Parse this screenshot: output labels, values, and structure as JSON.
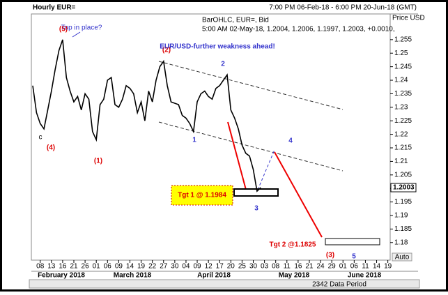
{
  "chart_data": {
    "type": "line",
    "title": "Hourly EUR=",
    "period": "7:00 PM 06-Feb-18 - 6:00 PM 20-Jun-18 (GMT)",
    "legend_text": "BarOHLC, EUR=, Bid",
    "legend_values": "5:00 AM 02-May-18, 1.2004, 1.2006, 1.1997, 1.2003, +0.0010,",
    "y_label": "Price USD",
    "last_price": 1.2003,
    "auto_button": "Auto",
    "data_period": "2342 Data Period",
    "x": [
      "2018-02-06",
      "2018-02-07",
      "2018-02-08",
      "2018-02-09",
      "2018-02-12",
      "2018-02-13",
      "2018-02-14",
      "2018-02-15",
      "2018-02-16",
      "2018-02-19",
      "2018-02-20",
      "2018-02-21",
      "2018-02-22",
      "2018-02-23",
      "2018-02-26",
      "2018-02-27",
      "2018-02-28",
      "2018-03-01",
      "2018-03-02",
      "2018-03-05",
      "2018-03-06",
      "2018-03-07",
      "2018-03-08",
      "2018-03-09",
      "2018-03-12",
      "2018-03-13",
      "2018-03-14",
      "2018-03-15",
      "2018-03-16",
      "2018-03-19",
      "2018-03-20",
      "2018-03-21",
      "2018-03-22",
      "2018-03-23",
      "2018-03-26",
      "2018-03-27",
      "2018-03-28",
      "2018-03-29",
      "2018-04-02",
      "2018-04-03",
      "2018-04-04",
      "2018-04-05",
      "2018-04-06",
      "2018-04-09",
      "2018-04-10",
      "2018-04-11",
      "2018-04-12",
      "2018-04-13",
      "2018-04-16",
      "2018-04-17",
      "2018-04-18",
      "2018-04-19",
      "2018-04-20",
      "2018-04-23",
      "2018-04-24",
      "2018-04-25",
      "2018-04-26",
      "2018-04-27",
      "2018-04-30",
      "2018-05-01",
      "2018-05-02"
    ],
    "series": [
      {
        "name": "EUR=",
        "color": "#000000",
        "values": [
          1.238,
          1.228,
          1.224,
          1.222,
          1.229,
          1.236,
          1.244,
          1.251,
          1.255,
          1.241,
          1.236,
          1.232,
          1.234,
          1.229,
          1.235,
          1.233,
          1.221,
          1.218,
          1.231,
          1.233,
          1.24,
          1.241,
          1.231,
          1.23,
          1.233,
          1.238,
          1.237,
          1.235,
          1.228,
          1.232,
          1.225,
          1.236,
          1.232,
          1.24,
          1.245,
          1.247,
          1.238,
          1.232,
          1.231,
          1.227,
          1.226,
          1.224,
          1.221,
          1.232,
          1.235,
          1.236,
          1.234,
          1.233,
          1.237,
          1.238,
          1.24,
          1.242,
          1.229,
          1.226,
          1.222,
          1.216,
          1.213,
          1.212,
          1.207,
          1.199,
          1.2003
        ]
      }
    ],
    "xlim": [
      "2018-02-06",
      "2018-06-20"
    ],
    "xticks": [
      {
        "value": "2018-02-08",
        "label": "08"
      },
      {
        "value": "2018-02-13",
        "label": "13"
      },
      {
        "value": "2018-02-16",
        "label": "16"
      },
      {
        "value": "2018-02-21",
        "label": "21"
      },
      {
        "value": "2018-02-26",
        "label": "26"
      },
      {
        "value": "2018-03-01",
        "label": "01"
      },
      {
        "value": "2018-03-06",
        "label": "06"
      },
      {
        "value": "2018-03-09",
        "label": "09"
      },
      {
        "value": "2018-03-14",
        "label": "14"
      },
      {
        "value": "2018-03-19",
        "label": "19"
      },
      {
        "value": "2018-03-22",
        "label": "22"
      },
      {
        "value": "2018-03-27",
        "label": "27"
      },
      {
        "value": "2018-03-30",
        "label": "30"
      },
      {
        "value": "2018-04-04",
        "label": "04"
      },
      {
        "value": "2018-04-09",
        "label": "09"
      },
      {
        "value": "2018-04-12",
        "label": "12"
      },
      {
        "value": "2018-04-17",
        "label": "17"
      },
      {
        "value": "2018-04-20",
        "label": "20"
      },
      {
        "value": "2018-04-25",
        "label": "25"
      },
      {
        "value": "2018-04-30",
        "label": "30"
      },
      {
        "value": "2018-05-03",
        "label": "03"
      },
      {
        "value": "2018-05-08",
        "label": "08"
      },
      {
        "value": "2018-05-11",
        "label": "11"
      },
      {
        "value": "2018-05-16",
        "label": "16"
      },
      {
        "value": "2018-05-21",
        "label": "21"
      },
      {
        "value": "2018-05-24",
        "label": "24"
      },
      {
        "value": "2018-05-29",
        "label": "29"
      },
      {
        "value": "2018-06-01",
        "label": "01"
      },
      {
        "value": "2018-06-06",
        "label": "06"
      },
      {
        "value": "2018-06-11",
        "label": "11"
      },
      {
        "value": "2018-06-14",
        "label": "14"
      },
      {
        "value": "2018-06-19",
        "label": "19"
      }
    ],
    "x_month_labels": [
      "February 2018",
      "March 2018",
      "April 2018",
      "May 2018",
      "June 2018"
    ],
    "ylim": [
      1.1735,
      1.2645
    ],
    "yticks": [
      1.18,
      1.185,
      1.19,
      1.195,
      1.2,
      1.205,
      1.21,
      1.215,
      1.22,
      1.225,
      1.23,
      1.235,
      1.24,
      1.245,
      1.25,
      1.255
    ],
    "annotations": [
      "(5)",
      "Top in place?",
      "(2)",
      "2",
      "EUR/USD-further weakness ahead!",
      "(4)",
      "c",
      "(1)",
      "1",
      "4",
      "Tgt 1 @ 1.1984",
      "3",
      "Tgt 2 @1.1825",
      "(3)",
      "5"
    ]
  }
}
